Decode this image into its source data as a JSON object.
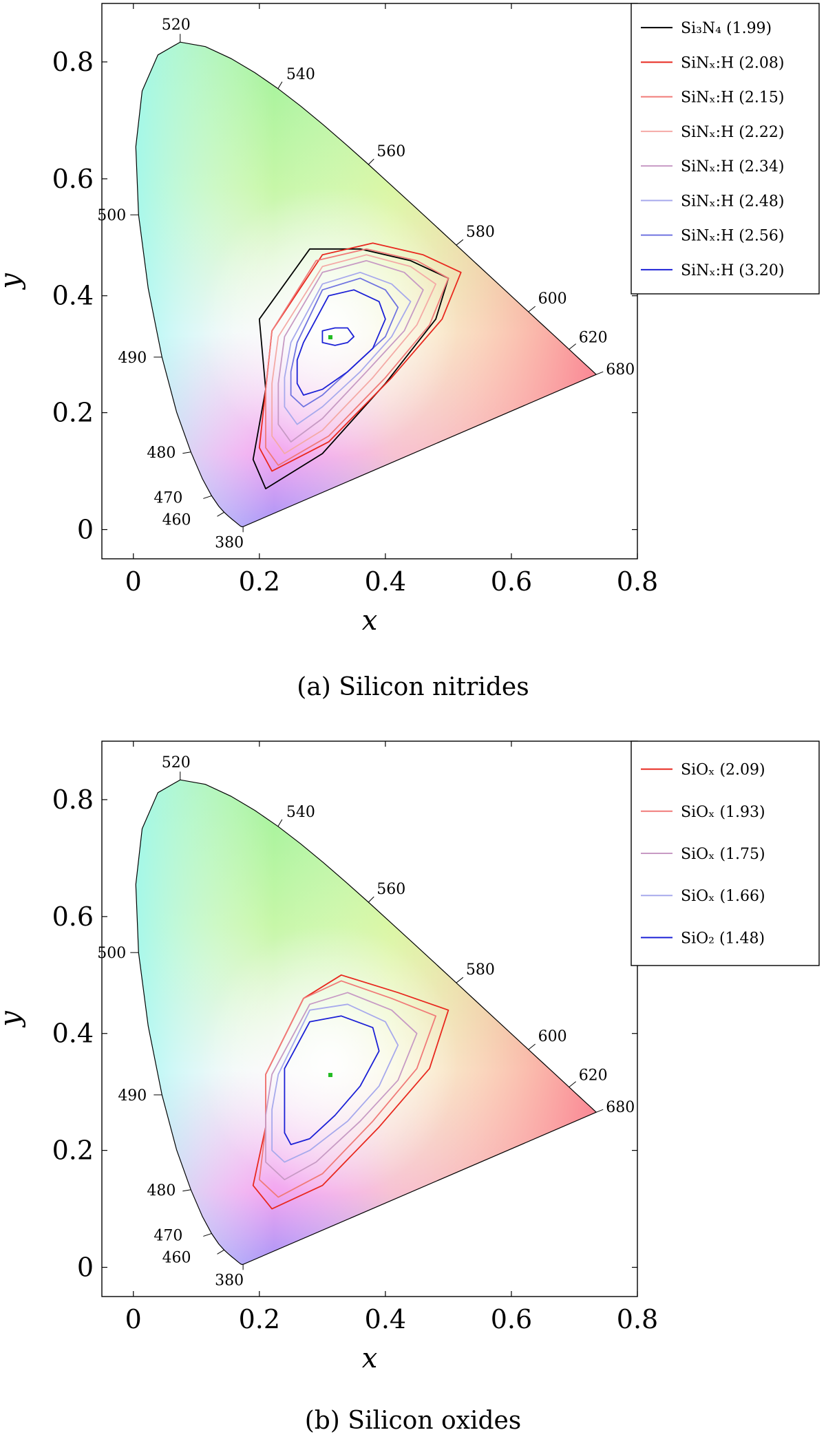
{
  "figure": {
    "panels": [
      {
        "caption": "(a)  Silicon nitrides",
        "xlabel": "x",
        "ylabel": "y",
        "x_ticks": [
          "0",
          "0.2",
          "0.4",
          "0.6",
          "0.8"
        ],
        "y_ticks": [
          "0",
          "0.2",
          "0.4",
          "0.6",
          "0.8"
        ],
        "legend": [
          {
            "label": "Si₃N₄  (1.99)",
            "color": "#000000"
          },
          {
            "label": "SiNₓ:H  (2.08)",
            "color": "#e8281e"
          },
          {
            "label": "SiNₓ:H  (2.15)",
            "color": "#f07a78"
          },
          {
            "label": "SiNₓ:H  (2.22)",
            "color": "#f4aaa6"
          },
          {
            "label": "SiNₓ:H  (2.34)",
            "color": "#c79ac4"
          },
          {
            "label": "SiNₓ:H  (2.48)",
            "color": "#a7a9ec"
          },
          {
            "label": "SiNₓ:H  (2.56)",
            "color": "#6f73e0"
          },
          {
            "label": "SiNₓ:H  (3.20)",
            "color": "#1b20d6"
          }
        ]
      },
      {
        "caption": "(b)  Silicon oxides",
        "xlabel": "x",
        "ylabel": "y",
        "x_ticks": [
          "0",
          "0.2",
          "0.4",
          "0.6",
          "0.8"
        ],
        "y_ticks": [
          "0",
          "0.2",
          "0.4",
          "0.6",
          "0.8"
        ],
        "legend": [
          {
            "label": "SiOₓ  (2.09)",
            "color": "#e8281e"
          },
          {
            "label": "SiOₓ  (1.93)",
            "color": "#f07a78"
          },
          {
            "label": "SiOₓ  (1.75)",
            "color": "#c79ac4"
          },
          {
            "label": "SiOₓ  (1.66)",
            "color": "#a7a9ec"
          },
          {
            "label": "SiO₂  (1.48)",
            "color": "#1b20d6"
          }
        ]
      }
    ]
  },
  "chart_data": [
    {
      "type": "line",
      "title": "",
      "xlabel": "x",
      "ylabel": "y",
      "xlim": [
        -0.05,
        0.8
      ],
      "ylim": [
        -0.05,
        0.9
      ],
      "white_point": {
        "x": 0.3127,
        "y": 0.329,
        "color": "#22bb22"
      },
      "spectral_locus": {
        "labels": [
          "380",
          "460",
          "470",
          "480",
          "490",
          "500",
          "520",
          "540",
          "560",
          "580",
          "600",
          "620",
          "680"
        ],
        "points": [
          {
            "nm": 380,
            "x": 0.1741,
            "y": 0.005
          },
          {
            "nm": 460,
            "x": 0.144,
            "y": 0.0297
          },
          {
            "nm": 470,
            "x": 0.1241,
            "y": 0.0578
          },
          {
            "nm": 480,
            "x": 0.0913,
            "y": 0.1327
          },
          {
            "nm": 490,
            "x": 0.0454,
            "y": 0.295
          },
          {
            "nm": 500,
            "x": 0.0082,
            "y": 0.5384
          },
          {
            "nm": 520,
            "x": 0.0743,
            "y": 0.8338
          },
          {
            "nm": 540,
            "x": 0.2296,
            "y": 0.7543
          },
          {
            "nm": 560,
            "x": 0.3731,
            "y": 0.6245
          },
          {
            "nm": 580,
            "x": 0.5125,
            "y": 0.4866
          },
          {
            "nm": 600,
            "x": 0.627,
            "y": 0.3725
          },
          {
            "nm": 620,
            "x": 0.6915,
            "y": 0.3083
          },
          {
            "nm": 680,
            "x": 0.7347,
            "y": 0.2653
          }
        ]
      },
      "series": [
        {
          "name": "Si₃N₄  (1.99)",
          "color": "#000000",
          "x": [
            0.2,
            0.28,
            0.36,
            0.44,
            0.5,
            0.48,
            0.4,
            0.3,
            0.21,
            0.19,
            0.21,
            0.2
          ],
          "y": [
            0.36,
            0.48,
            0.48,
            0.46,
            0.43,
            0.36,
            0.25,
            0.13,
            0.07,
            0.12,
            0.24,
            0.36
          ]
        },
        {
          "name": "SiNₓ:H  (2.08)",
          "color": "#e8281e",
          "x": [
            0.22,
            0.3,
            0.38,
            0.46,
            0.52,
            0.49,
            0.41,
            0.31,
            0.22,
            0.2,
            0.21,
            0.22
          ],
          "y": [
            0.34,
            0.47,
            0.49,
            0.47,
            0.44,
            0.36,
            0.26,
            0.15,
            0.1,
            0.14,
            0.24,
            0.34
          ]
        },
        {
          "name": "SiNₓ:H  (2.15)",
          "color": "#f07a78",
          "x": [
            0.22,
            0.29,
            0.37,
            0.45,
            0.5,
            0.47,
            0.4,
            0.31,
            0.23,
            0.21,
            0.21,
            0.22
          ],
          "y": [
            0.34,
            0.46,
            0.48,
            0.46,
            0.43,
            0.35,
            0.26,
            0.16,
            0.11,
            0.14,
            0.24,
            0.34
          ]
        },
        {
          "name": "SiNₓ:H  (2.22)",
          "color": "#f4aaa6",
          "x": [
            0.23,
            0.3,
            0.37,
            0.44,
            0.48,
            0.45,
            0.38,
            0.3,
            0.24,
            0.22,
            0.22,
            0.23
          ],
          "y": [
            0.33,
            0.45,
            0.47,
            0.45,
            0.42,
            0.35,
            0.26,
            0.17,
            0.13,
            0.16,
            0.25,
            0.33
          ]
        },
        {
          "name": "SiNₓ:H  (2.34)",
          "color": "#c79ac4",
          "x": [
            0.24,
            0.3,
            0.37,
            0.43,
            0.46,
            0.43,
            0.37,
            0.3,
            0.25,
            0.23,
            0.23,
            0.24
          ],
          "y": [
            0.33,
            0.44,
            0.46,
            0.44,
            0.41,
            0.34,
            0.27,
            0.19,
            0.15,
            0.18,
            0.25,
            0.33
          ]
        },
        {
          "name": "SiNₓ:H  (2.48)",
          "color": "#a7a9ec",
          "x": [
            0.25,
            0.3,
            0.36,
            0.41,
            0.44,
            0.41,
            0.36,
            0.3,
            0.26,
            0.24,
            0.24,
            0.25
          ],
          "y": [
            0.32,
            0.42,
            0.44,
            0.42,
            0.39,
            0.33,
            0.27,
            0.21,
            0.18,
            0.21,
            0.26,
            0.32
          ]
        },
        {
          "name": "SiNₓ:H  (2.56)",
          "color": "#6f73e0",
          "x": [
            0.26,
            0.3,
            0.36,
            0.4,
            0.42,
            0.4,
            0.35,
            0.3,
            0.27,
            0.25,
            0.25,
            0.26
          ],
          "y": [
            0.32,
            0.41,
            0.43,
            0.41,
            0.38,
            0.33,
            0.28,
            0.23,
            0.21,
            0.23,
            0.27,
            0.32
          ]
        },
        {
          "name": "SiNₓ:H  (3.20)",
          "color": "#1b20d6",
          "x": [
            0.27,
            0.31,
            0.35,
            0.39,
            0.4,
            0.38,
            0.34,
            0.3,
            0.27,
            0.26,
            0.26,
            0.27
          ],
          "y": [
            0.32,
            0.4,
            0.41,
            0.39,
            0.36,
            0.31,
            0.27,
            0.24,
            0.23,
            0.25,
            0.29,
            0.32
          ]
        },
        {
          "name": "",
          "color": "#1b20d6",
          "x": [
            0.3,
            0.32,
            0.34,
            0.35,
            0.34,
            0.32,
            0.3,
            0.3
          ],
          "y": [
            0.34,
            0.345,
            0.345,
            0.33,
            0.32,
            0.315,
            0.32,
            0.34
          ]
        }
      ]
    },
    {
      "type": "line",
      "title": "",
      "xlabel": "x",
      "ylabel": "y",
      "xlim": [
        -0.05,
        0.8
      ],
      "ylim": [
        -0.05,
        0.9
      ],
      "white_point": {
        "x": 0.3127,
        "y": 0.329,
        "color": "#22bb22"
      },
      "spectral_locus": {
        "labels": [
          "380",
          "460",
          "470",
          "480",
          "490",
          "500",
          "520",
          "540",
          "560",
          "580",
          "600",
          "620",
          "680"
        ],
        "points": [
          {
            "nm": 380,
            "x": 0.1741,
            "y": 0.005
          },
          {
            "nm": 460,
            "x": 0.144,
            "y": 0.0297
          },
          {
            "nm": 470,
            "x": 0.1241,
            "y": 0.0578
          },
          {
            "nm": 480,
            "x": 0.0913,
            "y": 0.1327
          },
          {
            "nm": 490,
            "x": 0.0454,
            "y": 0.295
          },
          {
            "nm": 500,
            "x": 0.0082,
            "y": 0.5384
          },
          {
            "nm": 520,
            "x": 0.0743,
            "y": 0.8338
          },
          {
            "nm": 540,
            "x": 0.2296,
            "y": 0.7543
          },
          {
            "nm": 560,
            "x": 0.3731,
            "y": 0.6245
          },
          {
            "nm": 580,
            "x": 0.5125,
            "y": 0.4866
          },
          {
            "nm": 600,
            "x": 0.627,
            "y": 0.3725
          },
          {
            "nm": 620,
            "x": 0.6915,
            "y": 0.3083
          },
          {
            "nm": 680,
            "x": 0.7347,
            "y": 0.2653
          }
        ]
      },
      "series": [
        {
          "name": "SiOₓ  (2.09)",
          "color": "#e8281e",
          "x": [
            0.21,
            0.27,
            0.33,
            0.42,
            0.5,
            0.47,
            0.39,
            0.3,
            0.22,
            0.19,
            0.21,
            0.21
          ],
          "y": [
            0.33,
            0.46,
            0.5,
            0.47,
            0.44,
            0.34,
            0.24,
            0.14,
            0.1,
            0.14,
            0.24,
            0.33
          ]
        },
        {
          "name": "SiOₓ  (1.93)",
          "color": "#f07a78",
          "x": [
            0.21,
            0.27,
            0.33,
            0.41,
            0.48,
            0.45,
            0.38,
            0.3,
            0.23,
            0.2,
            0.21,
            0.21
          ],
          "y": [
            0.33,
            0.46,
            0.49,
            0.46,
            0.43,
            0.34,
            0.25,
            0.16,
            0.12,
            0.15,
            0.24,
            0.33
          ]
        },
        {
          "name": "SiOₓ  (1.75)",
          "color": "#c79ac4",
          "x": [
            0.22,
            0.28,
            0.34,
            0.41,
            0.45,
            0.42,
            0.36,
            0.29,
            0.24,
            0.21,
            0.21,
            0.22
          ],
          "y": [
            0.33,
            0.45,
            0.47,
            0.44,
            0.4,
            0.32,
            0.25,
            0.18,
            0.15,
            0.18,
            0.26,
            0.33
          ]
        },
        {
          "name": "SiOₓ  (1.66)",
          "color": "#a7a9ec",
          "x": [
            0.23,
            0.28,
            0.34,
            0.4,
            0.42,
            0.39,
            0.34,
            0.28,
            0.24,
            0.22,
            0.22,
            0.23
          ],
          "y": [
            0.33,
            0.44,
            0.45,
            0.42,
            0.38,
            0.31,
            0.25,
            0.2,
            0.18,
            0.2,
            0.27,
            0.33
          ]
        },
        {
          "name": "SiO₂  (1.48)",
          "color": "#1b20d6",
          "x": [
            0.24,
            0.28,
            0.33,
            0.38,
            0.39,
            0.36,
            0.32,
            0.28,
            0.25,
            0.24,
            0.24,
            0.24
          ],
          "y": [
            0.34,
            0.42,
            0.43,
            0.41,
            0.37,
            0.31,
            0.26,
            0.22,
            0.21,
            0.23,
            0.28,
            0.34
          ]
        }
      ]
    }
  ]
}
